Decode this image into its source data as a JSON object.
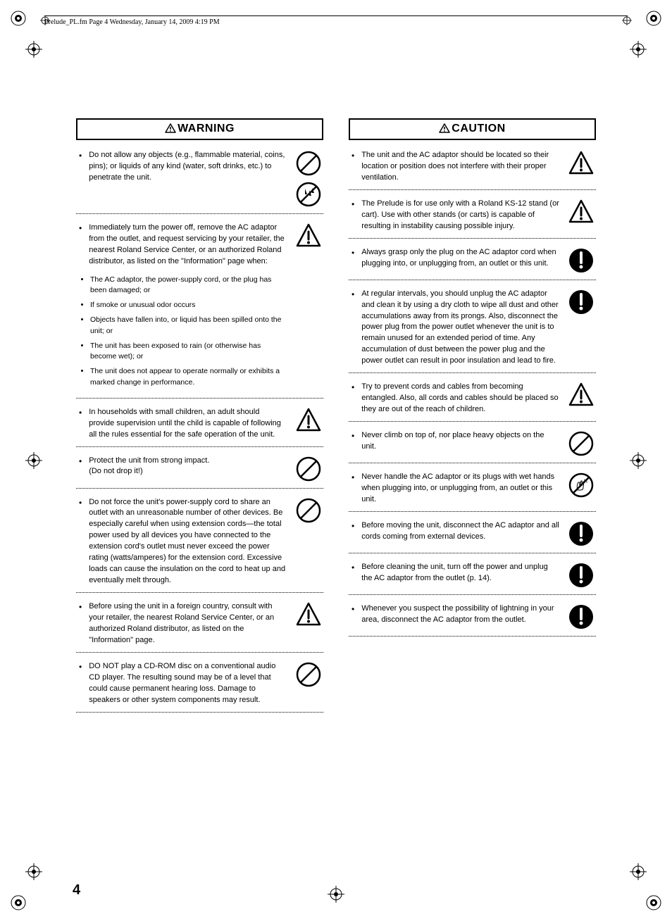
{
  "header_text": "Prelude_PL.fm  Page 4  Wednesday, January 14, 2009  4:19 PM",
  "page_number": "4",
  "warning": {
    "title": "WARNING",
    "items": [
      {
        "text": "Do not allow any objects (e.g., flammable material, coins, pins); or liquids of any kind (water, soft drinks, etc.) to penetrate the unit.",
        "icons": [
          "prohibit",
          "no-liquid"
        ]
      },
      {
        "text": "Immediately turn the power off, remove the AC adaptor from the outlet, and request servicing by your retailer, the nearest Roland Service Center, or an authorized Roland distributor, as listed on the \"Information\" page when:",
        "icons": [
          "alert-triangle"
        ],
        "sub": [
          "The AC adaptor, the power-supply cord, or the plug has been damaged; or",
          "If smoke or unusual odor occurs",
          "Objects have fallen into, or liquid has been spilled onto the unit; or",
          "The unit has been exposed to rain (or otherwise has become wet); or",
          "The unit does not appear to operate normally or exhibits a marked change in performance."
        ]
      },
      {
        "text": "In households with small children, an adult should provide supervision until the child is capable of following all the rules essential for the safe operation of the unit.",
        "icons": [
          "alert-triangle"
        ]
      },
      {
        "text": "Protect the unit from strong impact.\n(Do not drop it!)",
        "icons": [
          "prohibit"
        ]
      },
      {
        "text": "Do not force the unit's power-supply cord to share an outlet with an unreasonable number of other devices. Be especially careful when using extension cords—the total power used by all devices you have connected to the extension cord's outlet must never exceed the power rating (watts/amperes) for the extension cord. Excessive loads can cause the insulation on the cord to heat up and eventually melt through.",
        "icons": [
          "prohibit"
        ]
      },
      {
        "text": "Before using the unit in a foreign country, consult with your retailer, the nearest Roland Service Center, or an authorized Roland distributor, as listed on the \"Information\" page.",
        "icons": [
          "alert-triangle"
        ]
      },
      {
        "text": "DO NOT play a CD-ROM disc on a conventional audio CD player. The resulting sound may be of a level that could cause permanent hearing loss. Damage to speakers or other system components may result.",
        "icons": [
          "prohibit"
        ]
      }
    ]
  },
  "caution": {
    "title": "CAUTION",
    "items": [
      {
        "text": "The unit and the AC adaptor should be located so their location or position does not interfere with their proper ventilation.",
        "icons": [
          "alert-triangle"
        ]
      },
      {
        "text": "The Prelude is for use only with a Roland KS-12 stand (or cart). Use with other stands (or carts) is capable of resulting in instability causing possible injury.",
        "icons": [
          "alert-triangle"
        ]
      },
      {
        "text": "Always grasp only the plug on the AC adaptor cord when plugging into, or unplugging from, an outlet or this unit.",
        "icons": [
          "mandatory"
        ]
      },
      {
        "text": "At regular intervals, you should unplug the AC adaptor and clean it by using a dry cloth to wipe all dust and other accumulations away from its prongs. Also, disconnect the power plug from the power outlet whenever the unit is to remain unused for an extended period of time. Any accumulation of dust between the power plug and the power outlet can result in poor insulation and lead to fire.",
        "icons": [
          "mandatory"
        ]
      },
      {
        "text": "Try to prevent cords and cables from becoming entangled. Also, all cords and cables should be placed so they are out of the reach of children.",
        "icons": [
          "alert-triangle"
        ]
      },
      {
        "text": "Never climb on top of, nor place heavy objects on the unit.",
        "icons": [
          "prohibit"
        ]
      },
      {
        "text": "Never handle the AC adaptor or its plugs with wet hands when plugging into, or unplugging from, an outlet or this unit.",
        "icons": [
          "no-wet-hands"
        ]
      },
      {
        "text": "Before moving the unit, disconnect the AC adaptor and all cords coming from external devices.",
        "icons": [
          "mandatory"
        ]
      },
      {
        "text": "Before cleaning the unit, turn off the power and unplug the AC adaptor from the outlet (p. 14).",
        "icons": [
          "mandatory"
        ]
      },
      {
        "text": "Whenever you suspect the possibility of lightning in your area, disconnect the AC adaptor from the outlet.",
        "icons": [
          "mandatory"
        ]
      }
    ]
  }
}
